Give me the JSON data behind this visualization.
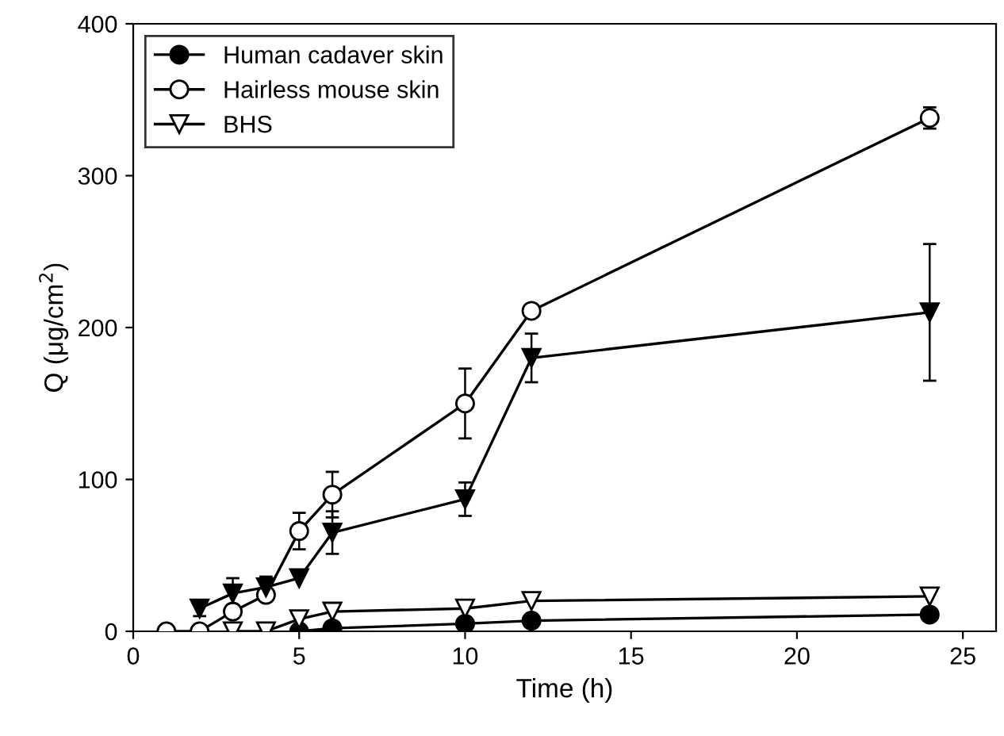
{
  "chart_data": {
    "type": "line",
    "xlabel": "Time (h)",
    "ylabel": "Q (μg/cm$^{2}$)",
    "xlim": [
      0,
      26
    ],
    "ylim": [
      0,
      400
    ],
    "xticks": [
      0,
      5,
      10,
      15,
      20,
      25
    ],
    "yticks": [
      0,
      100,
      200,
      300,
      400
    ],
    "grid": false,
    "legend": "top left",
    "line_style": "solid",
    "series": [
      {
        "name": "Human cadaver skin",
        "color": "#000000",
        "marker": "circle",
        "x": [
          5,
          6,
          10,
          12,
          24
        ],
        "values": [
          0,
          2,
          5,
          7,
          11
        ]
      },
      {
        "name": "Hairless mouse skin",
        "color": "#000000",
        "marker": "circle",
        "x": [
          1,
          2,
          3,
          4,
          5,
          6,
          10,
          12,
          24
        ],
        "values": [
          0,
          0,
          13,
          24,
          66,
          90,
          150,
          211,
          338
        ],
        "errors": [
          null,
          null,
          4,
          4,
          12,
          15,
          23,
          null,
          7
        ]
      },
      {
        "color": "#000000",
        "marker": "triangle",
        "x": [
          2,
          3,
          4,
          5,
          6,
          10,
          12,
          24
        ],
        "values": [
          15,
          25,
          29,
          35,
          65,
          87,
          180,
          210
        ],
        "errors": [
          5,
          10,
          7,
          null,
          14,
          11,
          16,
          45
        ]
      },
      {
        "name": "BHS",
        "color": "#000000",
        "marker": "triangle",
        "x": [
          3,
          4,
          5,
          6,
          10,
          12,
          24
        ],
        "values": [
          0,
          0,
          8,
          13,
          15,
          20,
          23
        ]
      }
    ]
  }
}
